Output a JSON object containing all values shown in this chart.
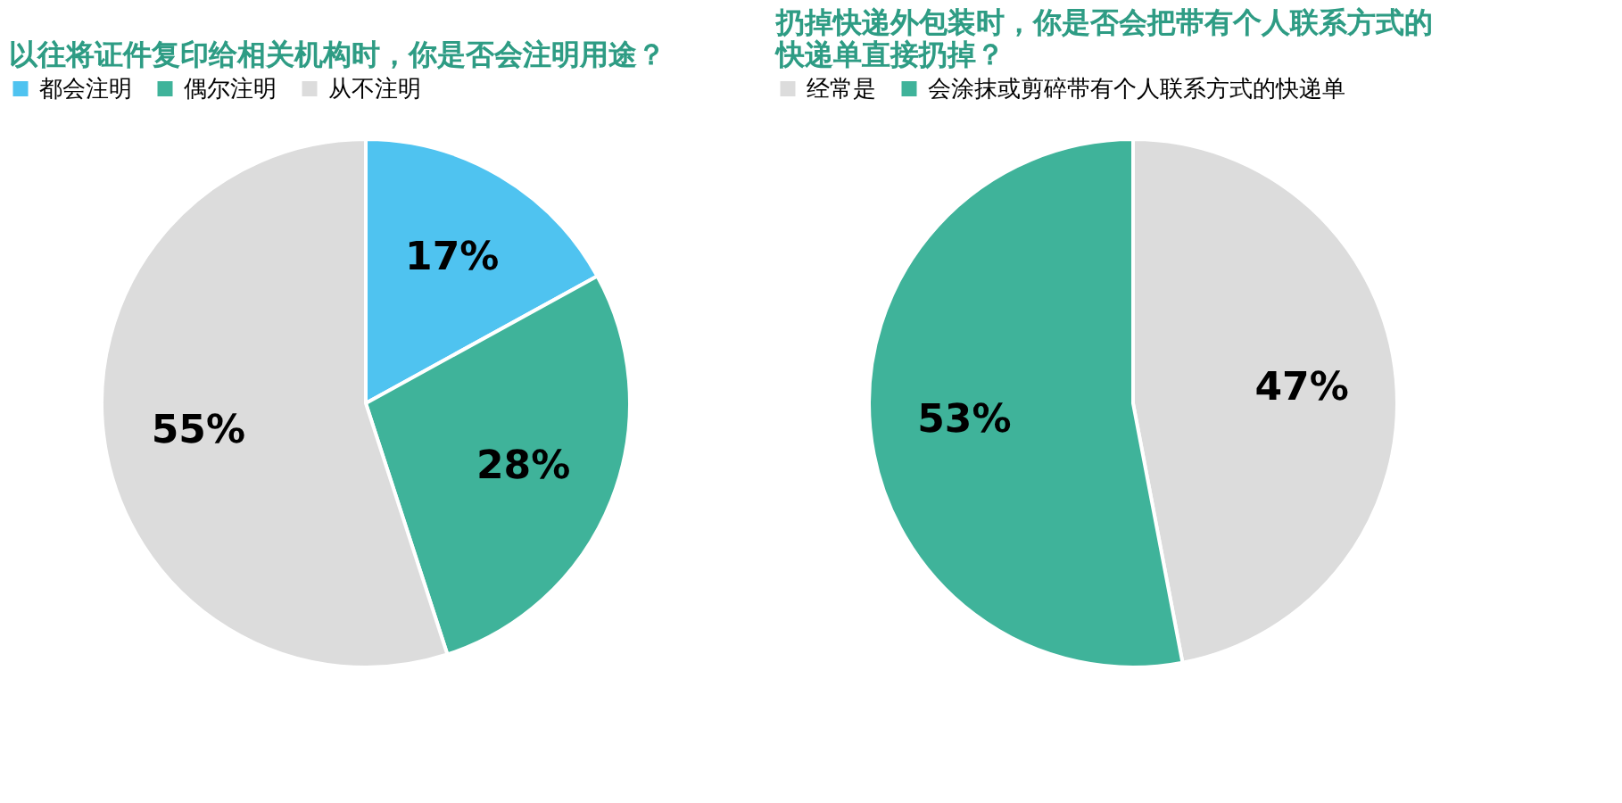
{
  "chart_data": [
    {
      "type": "pie",
      "title": "以往将证件复印给相关机构时，你是否会注明用途？",
      "categories": [
        "都会注明",
        "偶尔注明",
        "从不注明"
      ],
      "values": [
        17,
        28,
        55
      ],
      "colors": [
        "#4fc3f0",
        "#3fb39a",
        "#dcdcdc"
      ],
      "value_labels": [
        "17%",
        "28%",
        "55%"
      ],
      "legend": "top"
    },
    {
      "type": "pie",
      "title": "扔掉快递外包装时，你是否会把带有个人联系方式的快递单直接扔掉？",
      "categories": [
        "经常是",
        "会涂抹或剪碎带有个人联系方式的快递单"
      ],
      "values": [
        47,
        53
      ],
      "colors": [
        "#dcdcdc",
        "#3fb39a"
      ],
      "value_labels": [
        "47%",
        "53%"
      ],
      "legend": "top"
    }
  ]
}
